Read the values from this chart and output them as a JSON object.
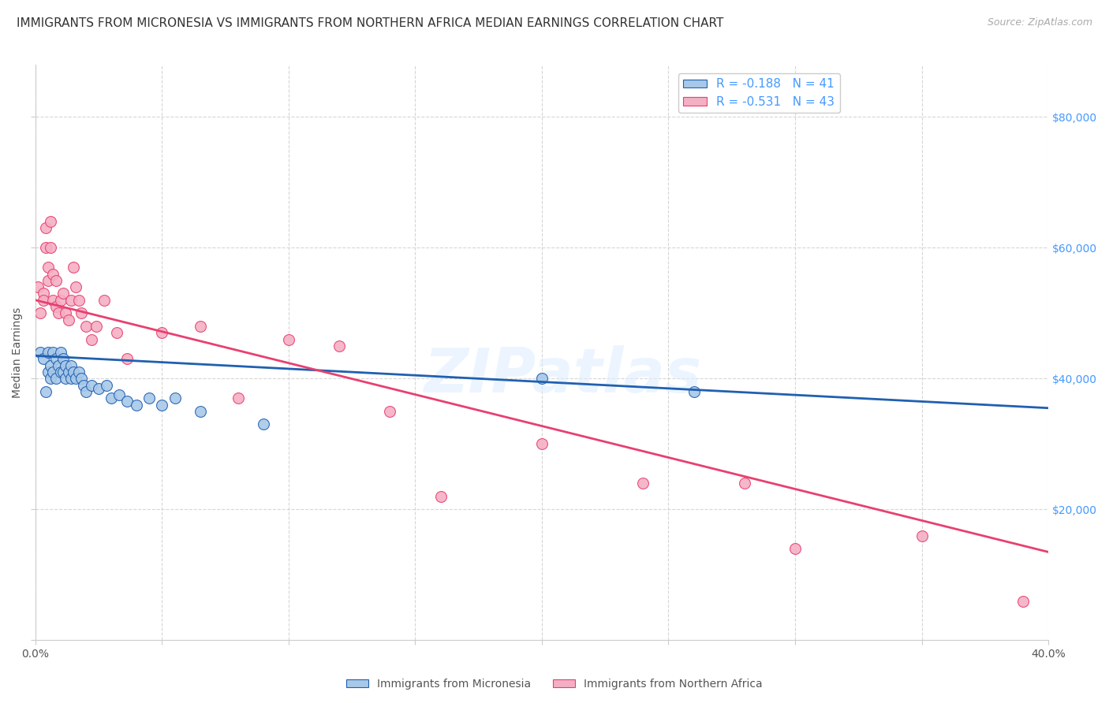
{
  "title": "IMMIGRANTS FROM MICRONESIA VS IMMIGRANTS FROM NORTHERN AFRICA MEDIAN EARNINGS CORRELATION CHART",
  "source": "Source: ZipAtlas.com",
  "ylabel": "Median Earnings",
  "xlim": [
    0.0,
    0.4
  ],
  "ylim": [
    0,
    88000
  ],
  "yticks": [
    0,
    20000,
    40000,
    60000,
    80000
  ],
  "ytick_labels": [
    "",
    "$20,000",
    "$40,000",
    "$60,000",
    "$80,000"
  ],
  "xticks": [
    0.0,
    0.05,
    0.1,
    0.15,
    0.2,
    0.25,
    0.3,
    0.35,
    0.4
  ],
  "blue_color": "#a8c8e8",
  "pink_color": "#f4afc4",
  "blue_line_color": "#2060b0",
  "pink_line_color": "#e84070",
  "legend_text_color": "#4499ff",
  "background_color": "#ffffff",
  "watermark": "ZIPatlas",
  "blue_scatter_x": [
    0.002,
    0.003,
    0.004,
    0.005,
    0.005,
    0.006,
    0.006,
    0.007,
    0.007,
    0.008,
    0.008,
    0.009,
    0.01,
    0.01,
    0.011,
    0.011,
    0.012,
    0.012,
    0.013,
    0.014,
    0.014,
    0.015,
    0.016,
    0.017,
    0.018,
    0.019,
    0.02,
    0.022,
    0.025,
    0.028,
    0.03,
    0.033,
    0.036,
    0.04,
    0.045,
    0.05,
    0.055,
    0.065,
    0.09,
    0.2,
    0.26
  ],
  "blue_scatter_y": [
    44000,
    43000,
    38000,
    44000,
    41000,
    42000,
    40000,
    44000,
    41000,
    43000,
    40000,
    42000,
    44000,
    41000,
    43000,
    41000,
    42000,
    40000,
    41000,
    42000,
    40000,
    41000,
    40000,
    41000,
    40000,
    39000,
    38000,
    39000,
    38500,
    39000,
    37000,
    37500,
    36500,
    36000,
    37000,
    36000,
    37000,
    35000,
    33000,
    40000,
    38000
  ],
  "pink_scatter_x": [
    0.001,
    0.002,
    0.003,
    0.003,
    0.004,
    0.004,
    0.005,
    0.005,
    0.006,
    0.006,
    0.007,
    0.007,
    0.008,
    0.008,
    0.009,
    0.01,
    0.011,
    0.012,
    0.013,
    0.014,
    0.015,
    0.016,
    0.017,
    0.018,
    0.02,
    0.022,
    0.024,
    0.027,
    0.032,
    0.036,
    0.05,
    0.065,
    0.08,
    0.1,
    0.12,
    0.14,
    0.16,
    0.2,
    0.24,
    0.28,
    0.3,
    0.35,
    0.39
  ],
  "pink_scatter_y": [
    54000,
    50000,
    53000,
    52000,
    63000,
    60000,
    57000,
    55000,
    64000,
    60000,
    56000,
    52000,
    55000,
    51000,
    50000,
    52000,
    53000,
    50000,
    49000,
    52000,
    57000,
    54000,
    52000,
    50000,
    48000,
    46000,
    48000,
    52000,
    47000,
    43000,
    47000,
    48000,
    37000,
    46000,
    45000,
    35000,
    22000,
    30000,
    24000,
    24000,
    14000,
    16000,
    6000
  ],
  "blue_trend_x": [
    0.0,
    0.4
  ],
  "blue_trend_y": [
    43500,
    35500
  ],
  "pink_trend_x": [
    0.0,
    0.4
  ],
  "pink_trend_y": [
    52000,
    13500
  ],
  "grid_color": "#cccccc",
  "title_fontsize": 11,
  "axis_label_fontsize": 10,
  "tick_fontsize": 10,
  "legend_fontsize": 11,
  "marker_size": 100
}
